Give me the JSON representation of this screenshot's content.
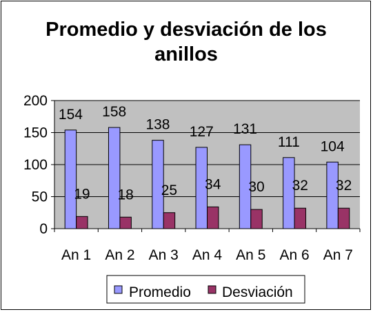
{
  "chart_data": {
    "type": "bar",
    "title": "Promedio y desviación de los anillos",
    "title_lines": [
      "Promedio y desviación de los",
      "anillos"
    ],
    "categories": [
      "An 1",
      "An 2",
      "An 3",
      "An 4",
      "An 5",
      "An 6",
      "An 7"
    ],
    "series": [
      {
        "name": "Promedio",
        "values": [
          154,
          158,
          138,
          127,
          131,
          111,
          104
        ],
        "color": "#9999FF"
      },
      {
        "name": "Desviación",
        "values": [
          19,
          18,
          25,
          34,
          30,
          32,
          32
        ],
        "color": "#993366"
      }
    ],
    "ylim": [
      0,
      200
    ],
    "yticks": [
      0,
      50,
      100,
      150,
      200
    ],
    "xlabel": "",
    "ylabel": "",
    "grid": true,
    "plot_background": "#C0C0C0",
    "legend_position": "bottom",
    "data_labels": true
  }
}
